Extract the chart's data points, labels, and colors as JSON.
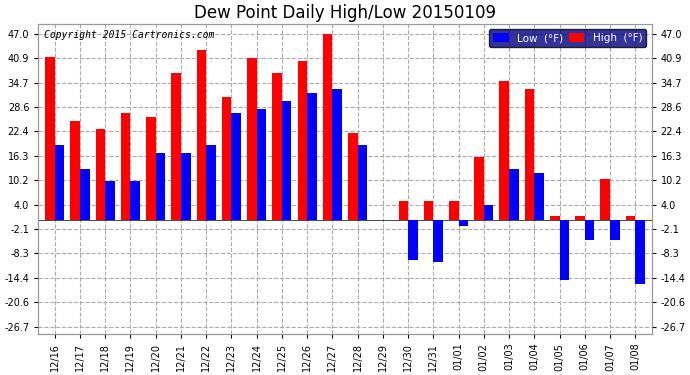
{
  "title": "Dew Point Daily High/Low 20150109",
  "copyright": "Copyright 2015 Cartronics.com",
  "yticks": [
    47.0,
    40.9,
    34.7,
    28.6,
    22.4,
    16.3,
    10.2,
    4.0,
    -2.1,
    -8.3,
    -14.4,
    -20.6,
    -26.7
  ],
  "ylim": [
    -28.5,
    49.5
  ],
  "dates": [
    "12/16",
    "12/17",
    "12/18",
    "12/19",
    "12/20",
    "12/21",
    "12/22",
    "12/23",
    "12/24",
    "12/25",
    "12/26",
    "12/27",
    "12/28",
    "12/29",
    "12/30",
    "12/31",
    "01/01",
    "01/02",
    "01/03",
    "01/04",
    "01/05",
    "01/06",
    "01/07",
    "01/08"
  ],
  "high": [
    41.0,
    25.0,
    23.0,
    27.0,
    26.0,
    37.0,
    43.0,
    31.0,
    40.9,
    37.0,
    40.0,
    47.0,
    22.0,
    0.0,
    5.0,
    5.0,
    5.0,
    16.0,
    35.0,
    33.0,
    1.0,
    1.0,
    10.5,
    1.0
  ],
  "low": [
    19.0,
    13.0,
    10.0,
    10.0,
    17.0,
    17.0,
    19.0,
    27.0,
    28.0,
    30.0,
    32.0,
    33.0,
    19.0,
    0.0,
    -10.0,
    -10.5,
    -1.5,
    4.0,
    13.0,
    12.0,
    -15.0,
    -5.0,
    -5.0,
    -16.0
  ],
  "has_data": [
    1,
    1,
    1,
    1,
    1,
    1,
    1,
    1,
    1,
    1,
    1,
    1,
    1,
    0,
    1,
    1,
    1,
    1,
    1,
    1,
    1,
    1,
    1,
    1
  ],
  "bar_width": 0.38,
  "high_color": "#ff0000",
  "low_color": "#0000ff",
  "bg_color": "#ffffff",
  "grid_color": "#aaaaaa",
  "title_fontsize": 12,
  "tick_fontsize": 7,
  "legend_bg_color": "#000080",
  "legend_text_color": "#ffffff"
}
